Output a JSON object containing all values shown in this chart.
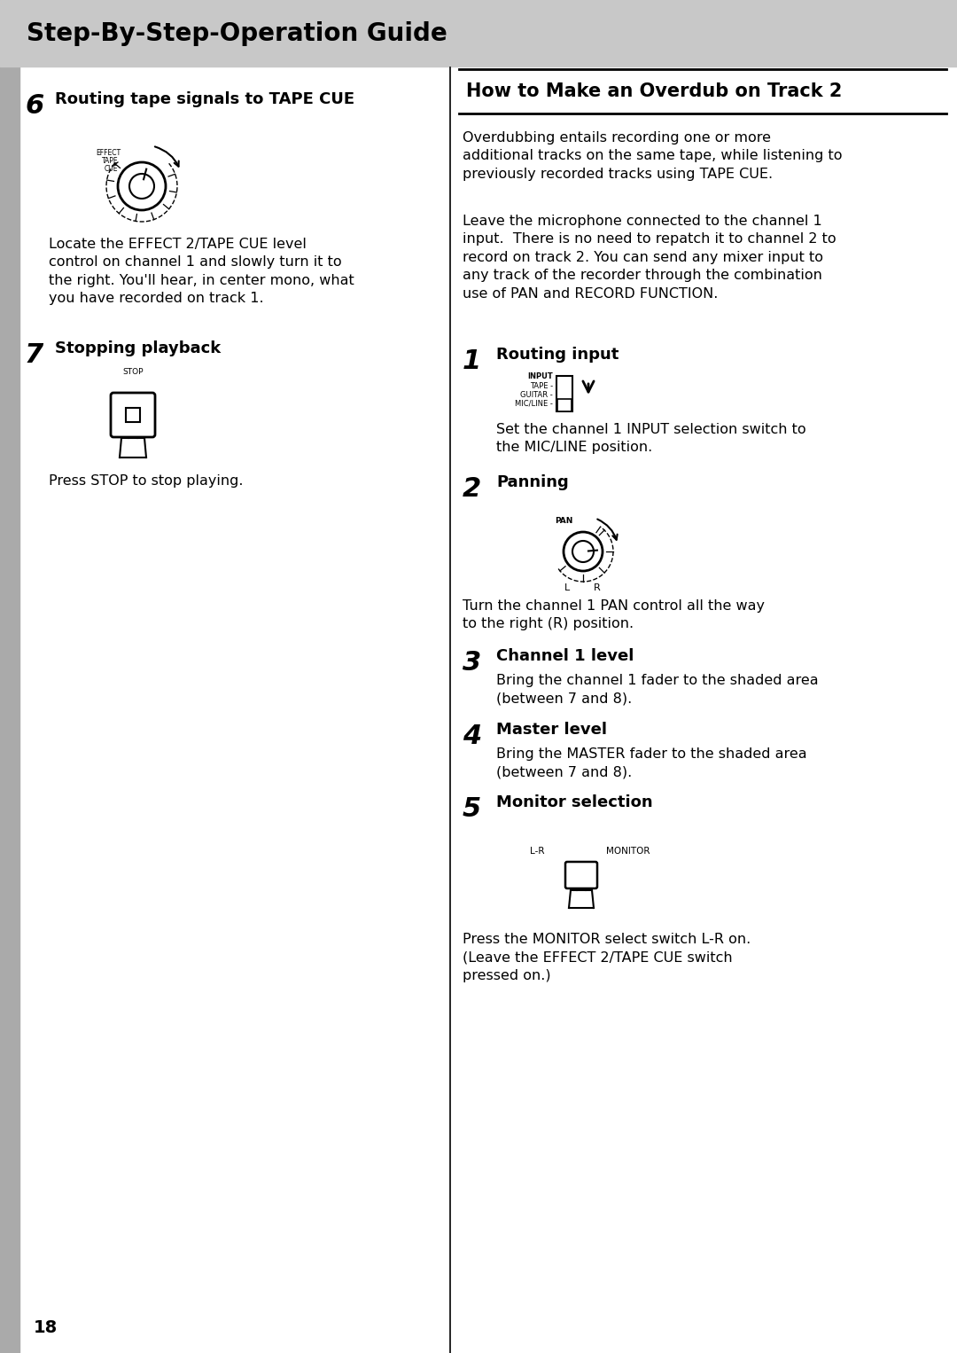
{
  "bg_color": "#ffffff",
  "header_bg": "#c8c8c8",
  "header_text": "Step-By-Step-Operation Guide",
  "header_fontsize": 20,
  "page_number": "18",
  "right_box_title": "How to Make an Overdub on Track 2",
  "right_intro1": "Overdubbing entails recording one or more\nadditional tracks on the same tape, while listening to\npreviously recorded tracks using TAPE CUE.",
  "right_intro2": "Leave the microphone connected to the channel 1\ninput.  There is no need to repatch it to channel 2 to\nrecord on track 2. You can send any mixer input to\nany track of the recorder through the combination\nuse of PAN and RECORD FUNCTION.",
  "step6_num": "6",
  "step6_title": "Routing tape signals to TAPE CUE",
  "step6_text": "Locate the EFFECT 2/TAPE CUE level\ncontrol on channel 1 and slowly turn it to\nthe right. You'll hear, in center mono, what\nyou have recorded on track 1.",
  "step7_num": "7",
  "step7_title": "Stopping playback",
  "step7_text": "Press STOP to stop playing.",
  "right_step1_num": "1",
  "right_step1_title": "Routing input",
  "right_step1_text": "Set the channel 1 INPUT selection switch to\nthe MIC/LINE position.",
  "right_step2_num": "2",
  "right_step2_title": "Panning",
  "right_step2_text": "Turn the channel 1 PAN control all the way\nto the right (R) position.",
  "right_step3_num": "3",
  "right_step3_title": "Channel 1 level",
  "right_step3_text": "Bring the channel 1 fader to the shaded area\n(between 7 and 8).",
  "right_step4_num": "4",
  "right_step4_title": "Master level",
  "right_step4_text": "Bring the MASTER fader to the shaded area\n(between 7 and 8).",
  "right_step5_num": "5",
  "right_step5_title": "Monitor selection",
  "right_step5_text": "Press the MONITOR select switch L-R on.\n(Leave the EFFECT 2/TAPE CUE switch\npressed on.)"
}
